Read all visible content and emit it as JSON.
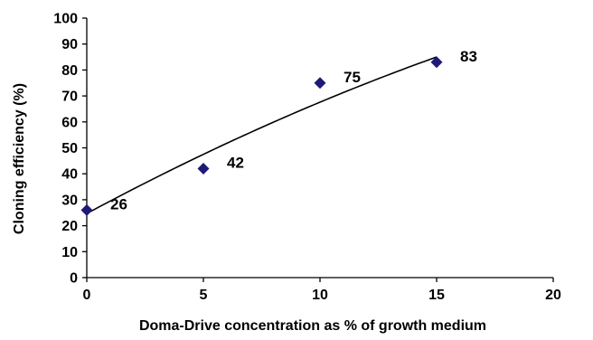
{
  "chart_data": {
    "type": "scatter",
    "title": "",
    "xlabel": "Doma-Drive concentration as % of growth medium",
    "ylabel": "Cloning efficiency (%)",
    "xlim": [
      0,
      20
    ],
    "ylim": [
      0,
      100
    ],
    "x_ticks": [
      "0",
      "5",
      "10",
      "15",
      "20"
    ],
    "y_ticks": [
      "0",
      "10",
      "20",
      "30",
      "40",
      "50",
      "60",
      "70",
      "80",
      "90",
      "100"
    ],
    "grid": false,
    "legend": "none",
    "series": [
      {
        "x": [
          0,
          5,
          10,
          15
        ],
        "y": [
          26,
          42,
          75,
          83
        ],
        "data_labels": [
          "26",
          "42",
          "75",
          "83"
        ],
        "marker": "diamond",
        "color": "#1f1a78"
      }
    ],
    "trendline": {
      "type": "polynomial",
      "x_range": [
        0,
        15
      ],
      "coefficients": [
        24.7,
        4.83,
        -0.054
      ],
      "color": "#000000"
    }
  }
}
